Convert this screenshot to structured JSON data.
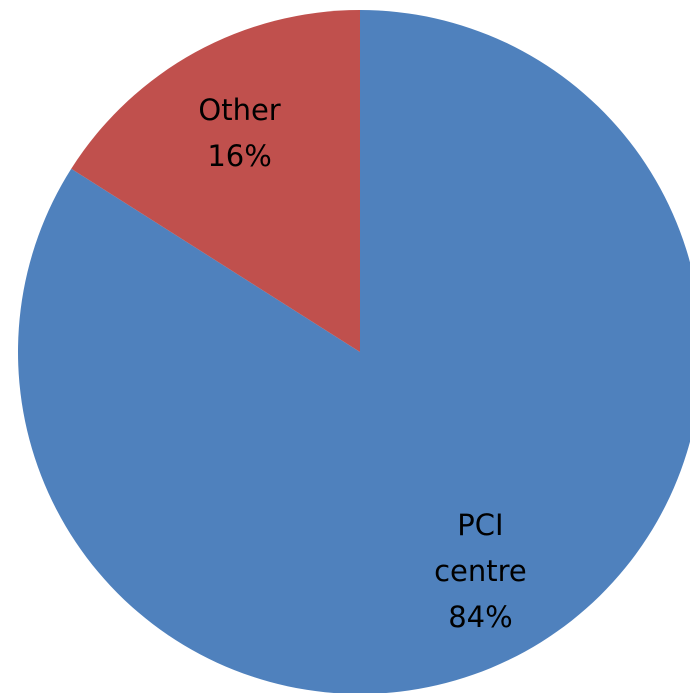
{
  "chart_data": {
    "type": "pie",
    "categories": [
      "PCI centre",
      "Other"
    ],
    "values": [
      84,
      16
    ],
    "value_labels": [
      "84%",
      "16%"
    ],
    "colors": [
      "#4f81bd",
      "#c0504d"
    ]
  }
}
